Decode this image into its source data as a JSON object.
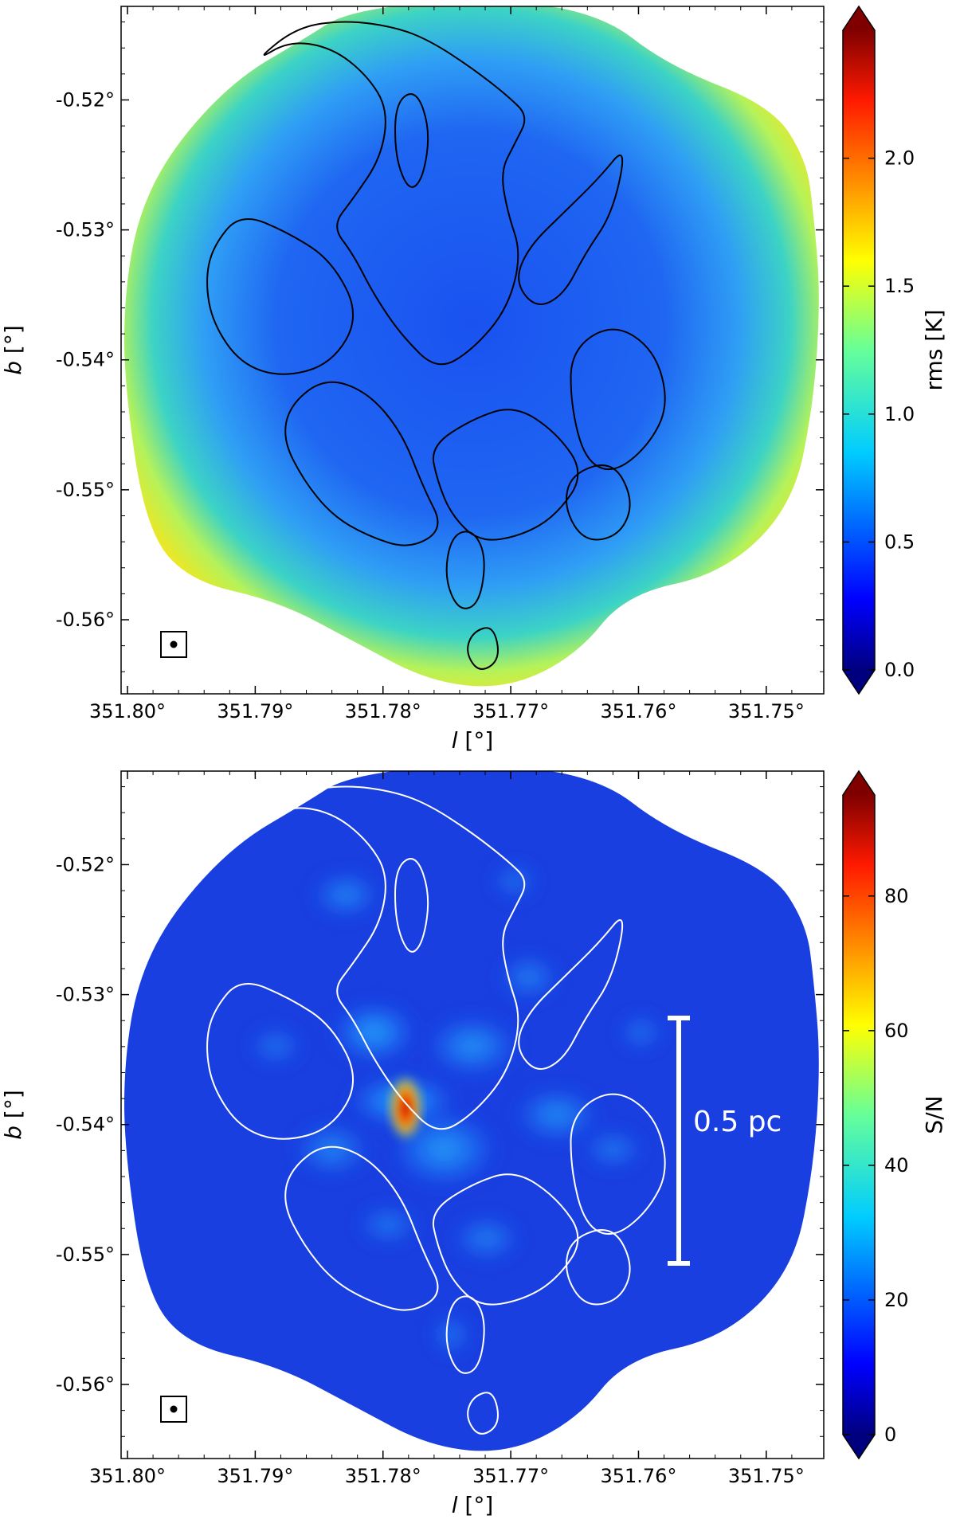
{
  "chart_data": [
    {
      "type": "heatmap",
      "panel": "top",
      "xlabel_var": "l",
      "xlabel_unit": "[°]",
      "ylabel_var": "b",
      "ylabel_unit": "[°]",
      "x_ticks": [
        "351.80°",
        "351.79°",
        "351.78°",
        "351.77°",
        "351.76°",
        "351.75°"
      ],
      "x_tick_values": [
        351.8,
        351.79,
        351.78,
        351.77,
        351.76,
        351.75
      ],
      "xlim": [
        351.8005,
        351.7455
      ],
      "y_ticks": [
        "-0.52°",
        "-0.53°",
        "-0.54°",
        "-0.55°",
        "-0.56°"
      ],
      "y_tick_values": [
        -0.52,
        -0.53,
        -0.54,
        -0.55,
        -0.56
      ],
      "ylim": [
        -0.5657,
        -0.5128
      ],
      "colorbar_label": "rms [K]",
      "colorbar_ticks": [
        "0.0",
        "0.5",
        "1.0",
        "1.5",
        "2.0"
      ],
      "colorbar_tick_values": [
        0.0,
        0.5,
        1.0,
        1.5,
        2.0
      ],
      "colorbar_range": [
        0.0,
        2.5
      ],
      "colormap": "jet",
      "contour_color": "#000000",
      "beam_marker": "bottom-left"
    },
    {
      "type": "heatmap",
      "panel": "bottom",
      "xlabel_var": "l",
      "xlabel_unit": "[°]",
      "ylabel_var": "b",
      "ylabel_unit": "[°]",
      "x_ticks": [
        "351.80°",
        "351.79°",
        "351.78°",
        "351.77°",
        "351.76°",
        "351.75°"
      ],
      "x_tick_values": [
        351.8,
        351.79,
        351.78,
        351.77,
        351.76,
        351.75
      ],
      "xlim": [
        351.8005,
        351.7455
      ],
      "y_ticks": [
        "-0.52°",
        "-0.53°",
        "-0.54°",
        "-0.55°",
        "-0.56°"
      ],
      "y_tick_values": [
        -0.52,
        -0.53,
        -0.54,
        -0.55,
        -0.56
      ],
      "ylim": [
        -0.5657,
        -0.5128
      ],
      "colorbar_label": "S/N",
      "colorbar_ticks": [
        "0",
        "20",
        "40",
        "60",
        "80"
      ],
      "colorbar_tick_values": [
        0,
        20,
        40,
        60,
        80
      ],
      "colorbar_range": [
        0,
        95
      ],
      "colormap": "jet",
      "contour_color": "#ffffff",
      "scalebar_label": "0.5 pc",
      "beam_marker": "bottom-left"
    }
  ]
}
